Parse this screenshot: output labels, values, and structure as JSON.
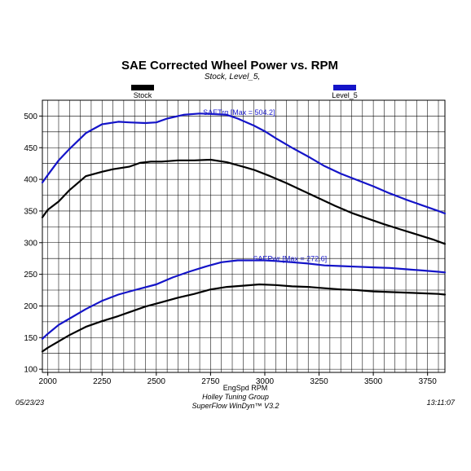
{
  "chart_data": {
    "type": "line",
    "title": "SAE Corrected Wheel Power vs. RPM",
    "subtitle": "Stock, Level_5,",
    "xlabel": "EngSpd RPM",
    "ylabel": "",
    "xlim": [
      1975,
      3830
    ],
    "ylim": [
      95,
      525
    ],
    "x_ticks": [
      2000,
      2250,
      2500,
      2750,
      3000,
      3250,
      3500,
      3750
    ],
    "y_ticks": [
      100,
      150,
      200,
      250,
      300,
      350,
      400,
      450,
      500
    ],
    "grid": true,
    "legend": [
      {
        "name": "Stock",
        "color": "#000000"
      },
      {
        "name": "Level_5",
        "color": "#1414c8"
      }
    ],
    "series": [
      {
        "legend": "Level_5",
        "color": "#1414c8",
        "quantity": "SAETrq",
        "x": [
          1975,
          2000,
          2050,
          2100,
          2175,
          2250,
          2325,
          2375,
          2450,
          2500,
          2550,
          2625,
          2700,
          2775,
          2825,
          2875,
          2950,
          3000,
          3050,
          3125,
          3200,
          3275,
          3350,
          3425,
          3500,
          3575,
          3650,
          3725,
          3800,
          3830
        ],
        "values": [
          395,
          407,
          430,
          448,
          473,
          487,
          491,
          490,
          489,
          490,
          496,
          502,
          504,
          503,
          502,
          496,
          485,
          476,
          465,
          450,
          436,
          421,
          409,
          399,
          389,
          378,
          368,
          359,
          350,
          346
        ]
      },
      {
        "legend": "Stock",
        "color": "#000000",
        "quantity": "SAETrq",
        "x": [
          1975,
          2000,
          2050,
          2100,
          2175,
          2250,
          2300,
          2375,
          2425,
          2475,
          2525,
          2600,
          2675,
          2750,
          2825,
          2900,
          2950,
          3025,
          3100,
          3175,
          3250,
          3325,
          3400,
          3475,
          3550,
          3625,
          3700,
          3775,
          3830
        ],
        "values": [
          340,
          352,
          365,
          383,
          405,
          412,
          416,
          420,
          426,
          428,
          428,
          430,
          430,
          431,
          427,
          420,
          415,
          405,
          394,
          382,
          370,
          358,
          347,
          338,
          329,
          321,
          313,
          305,
          298
        ]
      },
      {
        "legend": "Level_5",
        "color": "#1414c8",
        "quantity": "SAEPwr",
        "x": [
          1975,
          2000,
          2050,
          2100,
          2175,
          2250,
          2325,
          2400,
          2500,
          2575,
          2650,
          2725,
          2800,
          2875,
          2950,
          3000,
          3050,
          3125,
          3200,
          3275,
          3350,
          3425,
          3500,
          3575,
          3650,
          3725,
          3800,
          3830
        ],
        "values": [
          148,
          156,
          170,
          180,
          195,
          208,
          218,
          225,
          234,
          245,
          254,
          262,
          269,
          272,
          272,
          272,
          271,
          269,
          267,
          264,
          263,
          262,
          261,
          260,
          258,
          256,
          254,
          253
        ]
      },
      {
        "legend": "Stock",
        "color": "#000000",
        "quantity": "SAEPwr",
        "x": [
          1975,
          2000,
          2050,
          2100,
          2175,
          2250,
          2325,
          2375,
          2450,
          2525,
          2600,
          2675,
          2750,
          2825,
          2900,
          2975,
          3050,
          3125,
          3200,
          3275,
          3350,
          3425,
          3500,
          3575,
          3650,
          3725,
          3800,
          3830
        ],
        "values": [
          128,
          134,
          144,
          154,
          167,
          176,
          184,
          190,
          199,
          206,
          213,
          219,
          226,
          230,
          232,
          234,
          233,
          231,
          230,
          228,
          226,
          225,
          223,
          222,
          221,
          220,
          219,
          218
        ]
      }
    ],
    "annotations": [
      {
        "text": "SAETrq [Max = 504.2]",
        "x": 2715,
        "y": 502
      },
      {
        "text": "SAEPwr [Max = 272.6]",
        "x": 2945,
        "y": 271
      }
    ]
  },
  "footer": {
    "date": "05/23/23",
    "company": "Holley Tuning Group",
    "software": "SuperFlow WinDyn™ V3.2",
    "time": "13:11:07"
  }
}
